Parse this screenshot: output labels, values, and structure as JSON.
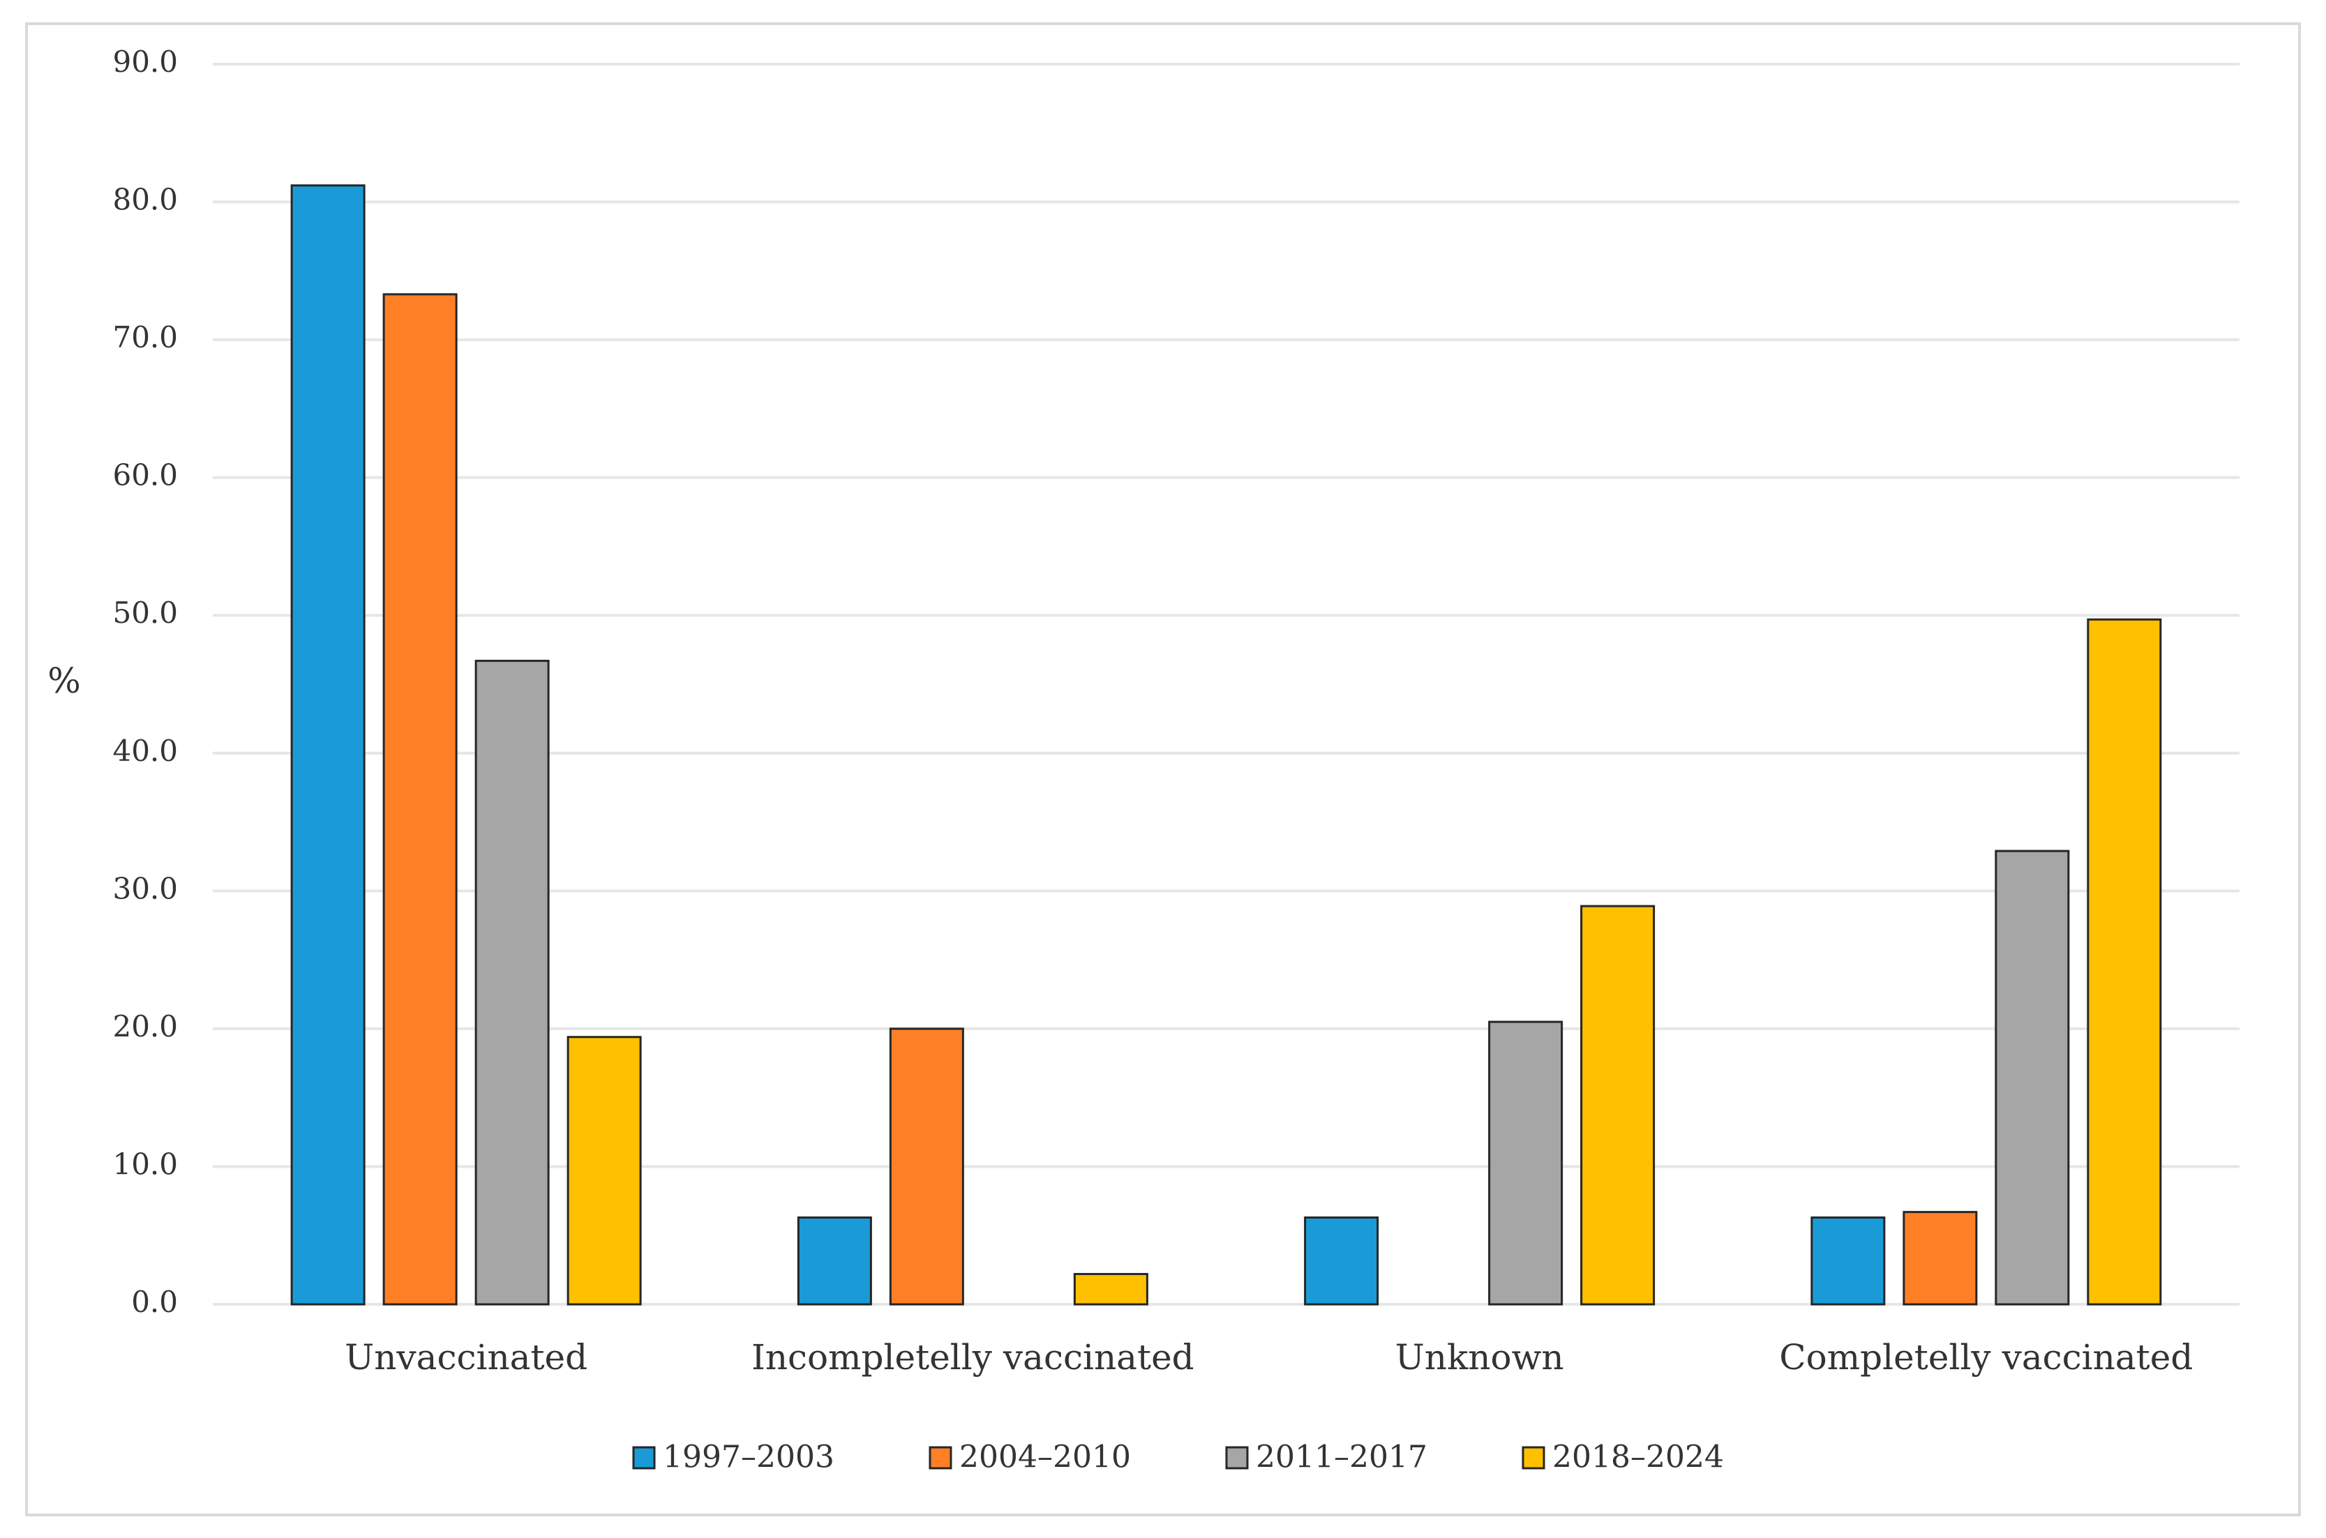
{
  "chart_data": {
    "type": "bar",
    "title": "",
    "xlabel": "",
    "ylabel": "%",
    "ylim": [
      0,
      90
    ],
    "yticks": [
      "0.0",
      "10.0",
      "20.0",
      "30.0",
      "40.0",
      "50.0",
      "60.0",
      "70.0",
      "80.0",
      "90.0"
    ],
    "grid": true,
    "legend_position": "bottom",
    "categories": [
      "Unvaccinated",
      "Incompletelly vaccinated",
      "Unknown",
      "Completelly vaccinated"
    ],
    "series": [
      {
        "name": "1997–2003",
        "color": "#1a9bd7",
        "values": [
          81.2,
          6.3,
          6.3,
          6.3
        ]
      },
      {
        "name": "2004–2010",
        "color": "#ff7f27",
        "values": [
          73.3,
          20.0,
          0.0,
          6.7
        ]
      },
      {
        "name": "2011–2017",
        "color": "#a6a6a6",
        "values": [
          46.7,
          0.0,
          20.5,
          32.9
        ]
      },
      {
        "name": "2018–2024",
        "color": "#ffc000",
        "values": [
          19.4,
          2.2,
          28.9,
          49.7
        ]
      }
    ]
  }
}
